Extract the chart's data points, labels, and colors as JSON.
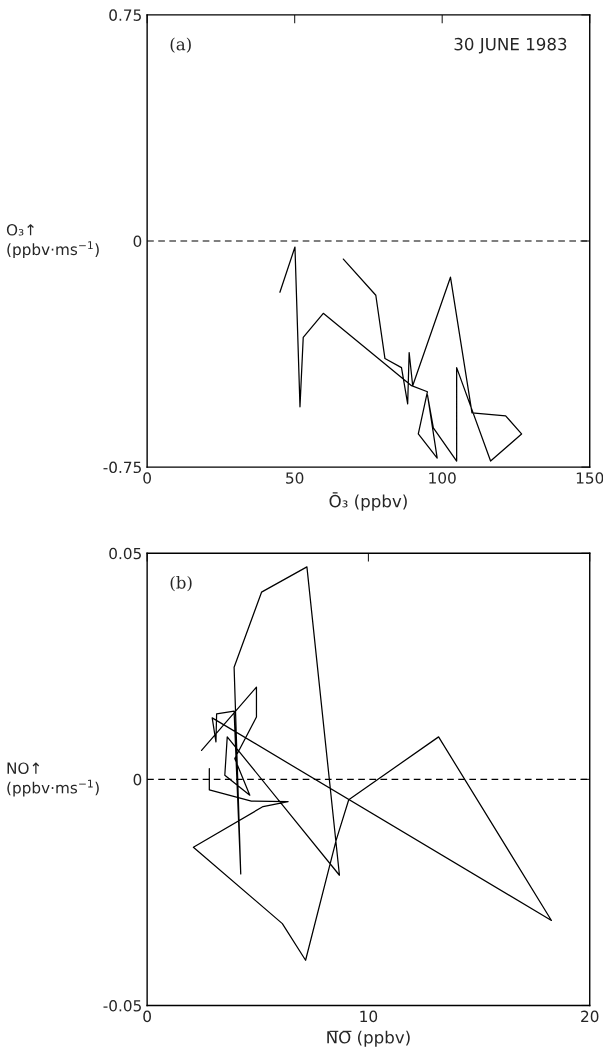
{
  "chart_data": [
    {
      "type": "line",
      "xlabel": "Ō₃ (ppbv)",
      "ylabel": "O₃↑\n(ppbv·ms$^{−1}$)",
      "annotations": [
        "(a)",
        "30 JUNE 1983"
      ],
      "xlim": [
        0,
        150
      ],
      "ylim": [
        -0.75,
        0.75
      ],
      "xticks": [
        0,
        50,
        100,
        150
      ],
      "yticks": [
        -0.75,
        0,
        0.75
      ],
      "grid": false,
      "legend": false,
      "ref_lines": [
        {
          "axis": "y",
          "value": 0,
          "line_style": "dashed",
          "color": "#000000"
        }
      ],
      "series": [
        {
          "color": "#000000",
          "x": [
            45.0,
            50.1,
            51.8,
            52.9,
            59.7,
            89.6,
            95.0,
            91.9,
            98.3,
            95.0,
            97.0,
            104.9,
            104.9,
            116.4,
            126.9,
            121.5,
            110.1,
            102.8,
            90.0,
            88.8,
            88.3,
            86.2,
            80.6,
            77.5,
            66.5
          ],
          "values": [
            -0.17,
            -0.02,
            -0.55,
            -0.32,
            -0.24,
            -0.48,
            -0.5,
            -0.64,
            -0.72,
            -0.51,
            -0.62,
            -0.73,
            -0.42,
            -0.73,
            -0.64,
            -0.58,
            -0.57,
            -0.12,
            -0.48,
            -0.37,
            -0.54,
            -0.42,
            -0.39,
            -0.18,
            -0.06
          ]
        }
      ]
    },
    {
      "type": "line",
      "xlabel": "N̅O̅ (ppbv)",
      "ylabel": "NO↑\n(ppbv·ms$^{−1}$)",
      "annotations": [
        "(b)"
      ],
      "xlim": [
        0,
        20
      ],
      "ylim": [
        -0.05,
        0.05
      ],
      "xticks": [
        0,
        10,
        20
      ],
      "yticks": [
        -0.05,
        0,
        0.05
      ],
      "grid": false,
      "legend": false,
      "ref_lines": [
        {
          "axis": "y",
          "value": 0,
          "line_style": "dashed",
          "color": "#000000"
        }
      ],
      "series": [
        {
          "color": "#000000",
          "x": [
            2.81,
            2.81,
            4.71,
            6.37,
            5.24,
            2.09,
            6.11,
            7.16,
            8.54,
            9.11,
            13.17,
            18.27,
            2.94,
            3.11,
            3.14,
            3.93,
            4.23,
            3.93,
            5.17,
            7.22,
            8.69,
            3.62,
            3.51,
            4.64,
            3.96,
            4.94,
            4.94,
            2.46
          ],
          "values": [
            0.0024,
            -0.0023,
            -0.0048,
            -0.0049,
            -0.006,
            -0.015,
            -0.0319,
            -0.04,
            -0.0135,
            -0.0045,
            0.0094,
            -0.0312,
            0.0136,
            0.0083,
            0.0145,
            0.0151,
            -0.0209,
            0.0248,
            0.0414,
            0.047,
            -0.0212,
            0.0094,
            0.0009,
            -0.0035,
            0.0046,
            0.0138,
            0.0204,
            0.0064
          ]
        }
      ]
    }
  ]
}
